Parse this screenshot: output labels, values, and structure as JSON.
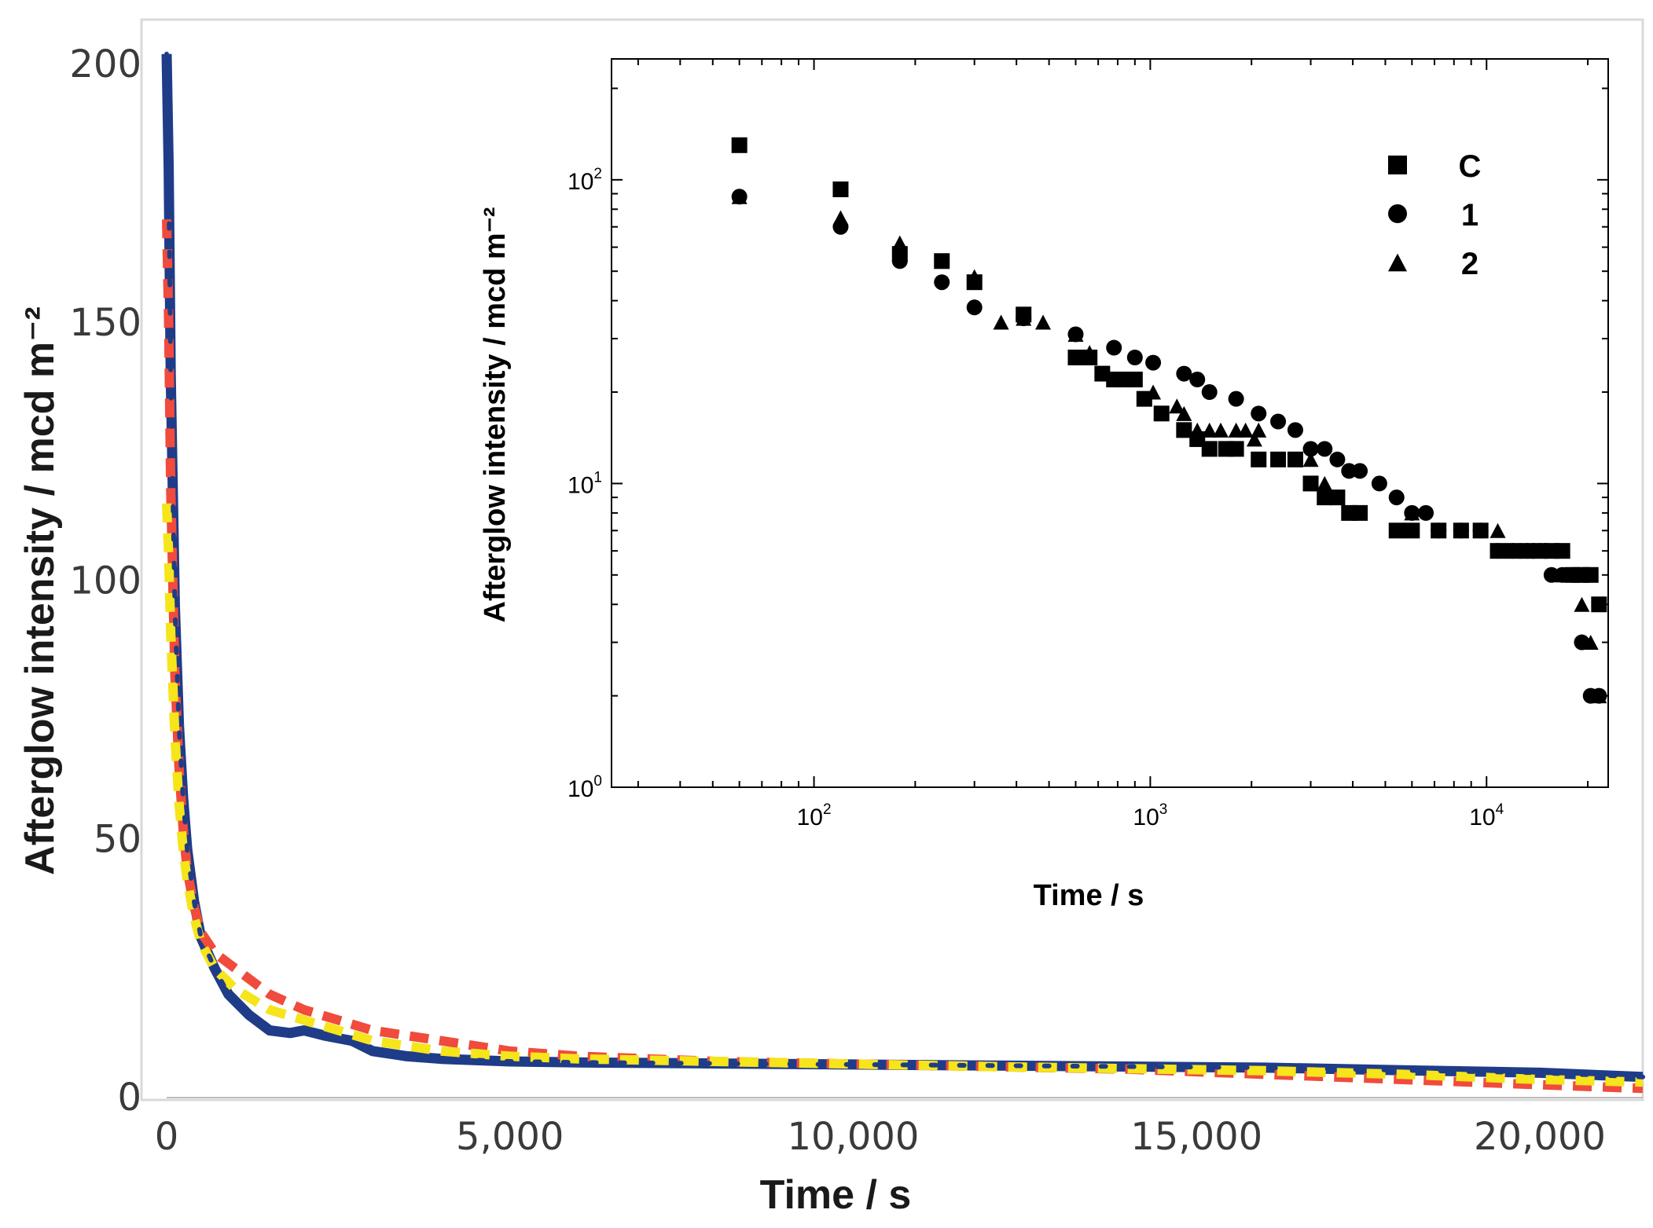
{
  "chart_data": [
    {
      "type": "line",
      "title": "",
      "xlabel": "Time / s",
      "ylabel": "Afterglow intensity / mcd m⁻²",
      "xlim": [
        0,
        21500
      ],
      "ylim": [
        0,
        200
      ],
      "x_ticks": [
        0,
        5000,
        10000,
        15000,
        20000
      ],
      "x_tick_labels": [
        "0",
        "5,000",
        "10,000",
        "15,000",
        "20,000"
      ],
      "y_ticks": [
        0,
        50,
        100,
        150,
        200
      ],
      "y_tick_labels": [
        "0",
        "50",
        "100",
        "150",
        "200"
      ],
      "grid": false,
      "series": [
        {
          "name": "C",
          "color": "#1f3c88",
          "style": "solid",
          "x": [
            0,
            30,
            60,
            120,
            180,
            240,
            300,
            400,
            500,
            700,
            900,
            1200,
            1500,
            1800,
            2000,
            2300,
            2700,
            3000,
            3500,
            4000,
            5000,
            6000,
            7000,
            8000,
            9000,
            10000,
            12000,
            14000,
            16000,
            18000,
            20000,
            21500
          ],
          "y": [
            202,
            180,
            140,
            95,
            72,
            58,
            48,
            38,
            31,
            25,
            20,
            16,
            13,
            12.5,
            13,
            12,
            11,
            9,
            8,
            7.5,
            7,
            6.8,
            6.7,
            6.6,
            6.5,
            6.4,
            6.2,
            6.0,
            5.8,
            5.3,
            4.8,
            4.0
          ]
        },
        {
          "name": "1",
          "color": "#f04b3c",
          "style": "dashed",
          "x": [
            0,
            30,
            60,
            120,
            180,
            240,
            300,
            400,
            500,
            700,
            1000,
            1500,
            2000,
            2500,
            3000,
            4000,
            5000,
            6000,
            7000,
            8000,
            10000,
            12000,
            14000,
            15000,
            16000,
            17000,
            18000,
            19000,
            20000,
            21000,
            21500
          ],
          "y": [
            170,
            150,
            118,
            82,
            64,
            52,
            44,
            37,
            32,
            28,
            25,
            20,
            17,
            15,
            13,
            11,
            9,
            8,
            7.5,
            7,
            6.5,
            6,
            5.5,
            5,
            4.5,
            4,
            3.5,
            3,
            2.5,
            2,
            1.8
          ]
        },
        {
          "name": "2",
          "color": "#f5e51a",
          "style": "dashed",
          "x": [
            0,
            30,
            60,
            120,
            180,
            240,
            300,
            400,
            500,
            700,
            1000,
            1500,
            2000,
            2500,
            3000,
            3500,
            4000,
            5000,
            6000,
            8000,
            10000,
            12000,
            14000,
            16000,
            18000,
            20000,
            21500
          ],
          "y": [
            115,
            105,
            90,
            70,
            57,
            48,
            42,
            35,
            30,
            25,
            21,
            17,
            15,
            13,
            11,
            10,
            9,
            8,
            7.5,
            7,
            6.5,
            6,
            5.6,
            5.2,
            4.5,
            3.5,
            3.0
          ]
        }
      ]
    },
    {
      "type": "scatter",
      "title": "",
      "xlabel": "Time / s",
      "ylabel": "Afterglow intensity / mcd m⁻²",
      "xscale": "log",
      "yscale": "log",
      "xlim": [
        25,
        23000
      ],
      "ylim": [
        1,
        250
      ],
      "x_ticks": [
        {
          "base": "10",
          "exp": "2",
          "value": 100
        },
        {
          "base": "10",
          "exp": "3",
          "value": 1000
        },
        {
          "base": "10",
          "exp": "4",
          "value": 10000
        }
      ],
      "y_ticks": [
        {
          "base": "10",
          "exp": "0",
          "value": 1
        },
        {
          "base": "10",
          "exp": "1",
          "value": 10
        },
        {
          "base": "10",
          "exp": "2",
          "value": 100
        }
      ],
      "legend_position": "top-right",
      "series": [
        {
          "name": "C",
          "marker": "square",
          "x": [
            60,
            120,
            180,
            240,
            300,
            420,
            600,
            660,
            720,
            780,
            840,
            900,
            960,
            1080,
            1260,
            1380,
            1500,
            1680,
            1800,
            2100,
            2400,
            2700,
            3000,
            3300,
            3600,
            3900,
            4200,
            5400,
            6000,
            7200,
            8400,
            9600,
            10800,
            12000,
            13200,
            14400,
            15600,
            16800,
            18000,
            19200,
            20400,
            21600
          ],
          "y": [
            130,
            93,
            57,
            54,
            46,
            36,
            26,
            26,
            23,
            22,
            22,
            22,
            19,
            17,
            15,
            14,
            13,
            13,
            13,
            12,
            12,
            12,
            10,
            9,
            9,
            8,
            8,
            7,
            7,
            7,
            7,
            7,
            6,
            6,
            6,
            6,
            6,
            6,
            5,
            5,
            5,
            4
          ]
        },
        {
          "name": "1",
          "marker": "circle",
          "x": [
            60,
            120,
            180,
            240,
            300,
            420,
            600,
            780,
            900,
            1020,
            1260,
            1380,
            1500,
            1800,
            2100,
            2400,
            2700,
            3000,
            3300,
            3600,
            3900,
            4200,
            4800,
            5400,
            6000,
            6600,
            7200,
            8400,
            9600,
            10800,
            12000,
            13200,
            14400,
            15600,
            16800,
            18000,
            19200,
            20400,
            21600
          ],
          "y": [
            88,
            70,
            54,
            46,
            38,
            35,
            31,
            28,
            26,
            25,
            23,
            22,
            20,
            19,
            17,
            16,
            15,
            13,
            13,
            12,
            11,
            11,
            10,
            9,
            8,
            8,
            7,
            7,
            7,
            6,
            6,
            6,
            6,
            5,
            5,
            5,
            3,
            2,
            2
          ]
        },
        {
          "name": "2",
          "marker": "triangle",
          "x": [
            60,
            120,
            180,
            300,
            360,
            420,
            480,
            600,
            660,
            1020,
            1200,
            1260,
            1380,
            1500,
            1620,
            1800,
            1920,
            2040,
            2100,
            3000,
            3300,
            3600,
            4200,
            5400,
            6000,
            7200,
            8400,
            9600,
            10800,
            12000,
            13200,
            14400,
            15600,
            16800,
            18000,
            19200,
            20400,
            21600
          ],
          "y": [
            88,
            75,
            62,
            48,
            34,
            35,
            34,
            31,
            27,
            20,
            18,
            17,
            15,
            15,
            15,
            15,
            15,
            14,
            15,
            12,
            10,
            9,
            8,
            7,
            8,
            7,
            7,
            7,
            7,
            6,
            6,
            6,
            6,
            5,
            5,
            4,
            3,
            2
          ]
        }
      ]
    }
  ]
}
